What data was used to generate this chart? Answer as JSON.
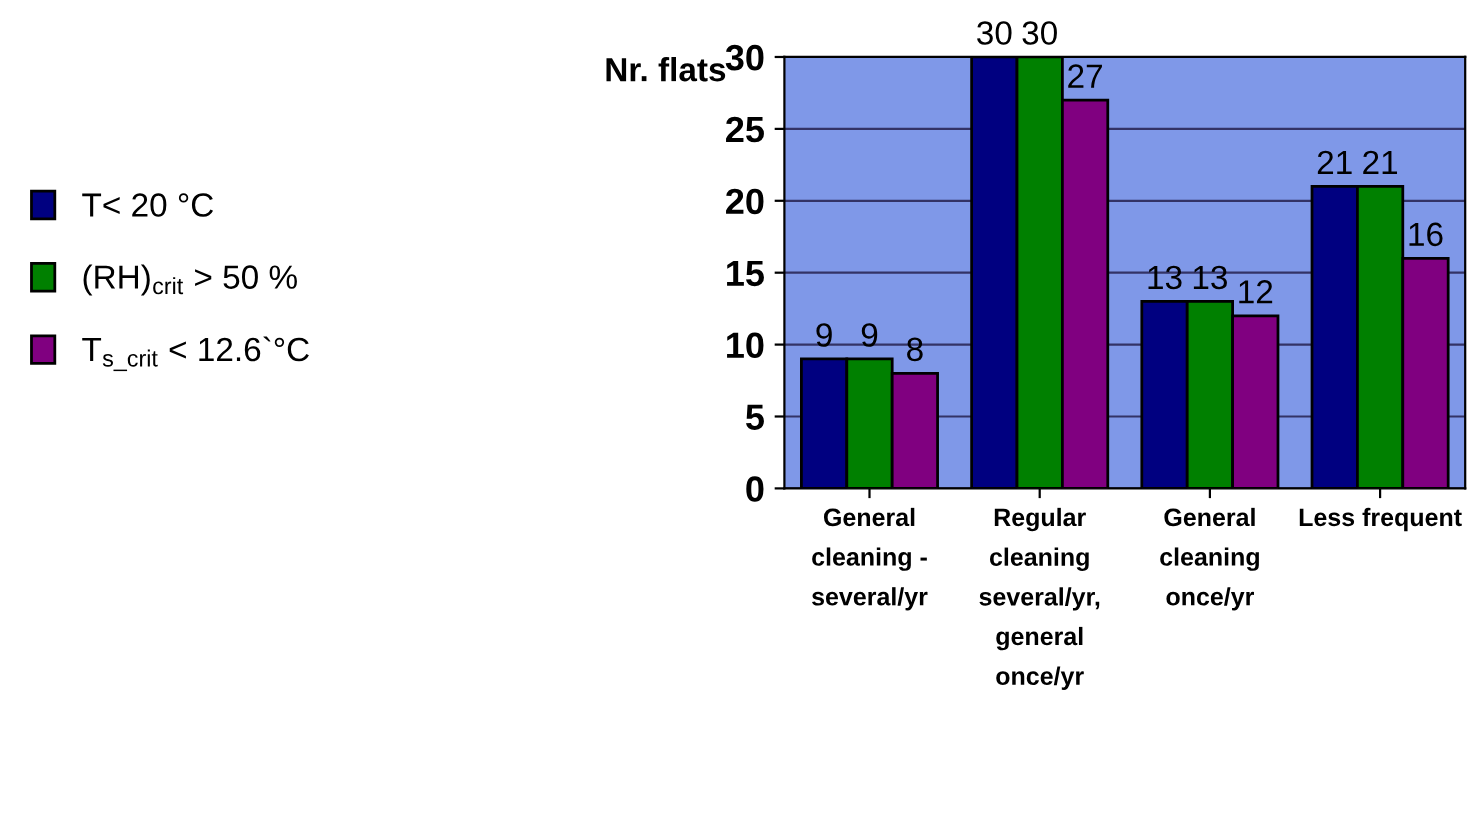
{
  "chart_data": {
    "type": "bar",
    "ylabel": "Nr. flats",
    "categories": [
      "General\ncleaning -\nseveral/yr",
      "Regular\ncleaning\nseveral/yr,\ngeneral\nonce/yr",
      "General\ncleaning\nonce/yr",
      "Less frequent"
    ],
    "series": [
      {
        "name": "T< 20 °C",
        "color": "#000080",
        "values": [
          9,
          30,
          13,
          21
        ]
      },
      {
        "name": "(RH)$_{crit}$ > 50 %",
        "color": "#008000",
        "values": [
          9,
          30,
          13,
          21
        ]
      },
      {
        "name": "T$_{s_crit}$ < 12.6`°C",
        "color": "#800080",
        "values": [
          8,
          27,
          12,
          16
        ]
      }
    ],
    "ylim": [
      0,
      30
    ],
    "yticks": [
      0,
      5,
      10,
      15,
      20,
      25,
      30
    ],
    "grid": "y",
    "legend": "left",
    "data_labels": true
  }
}
